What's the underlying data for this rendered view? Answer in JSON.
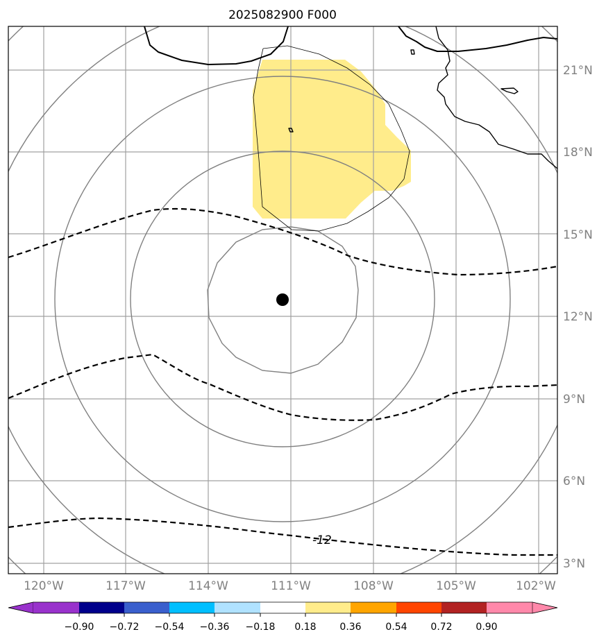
{
  "title": "2025082900 F000",
  "lat_labels": [
    "21°N",
    "18°N",
    "15°N",
    "12°N",
    "9°N",
    "6°N",
    "3°N"
  ],
  "lon_labels": [
    "120°W",
    "117°W",
    "114°W",
    "111°W",
    "108°W",
    "105°W",
    "102°W"
  ],
  "contour_label": "-12",
  "colorbar": {
    "tick_labels": [
      "−0.90",
      "−0.72",
      "−0.54",
      "−0.36",
      "−0.18",
      "0.18",
      "0.36",
      "0.54",
      "0.72",
      "0.90"
    ],
    "colors": [
      "#9932cc",
      "#00008b",
      "#3a5fcd",
      "#00bfff",
      "#b0e2ff",
      "#ffffff",
      "#ffec8b",
      "#ffa500",
      "#ff4500",
      "#b22222",
      "#ff88aa"
    ]
  },
  "colors": {
    "positive_region": "#ffec8b",
    "gridline": "#a0a0a0",
    "range_ring": "#808080",
    "contour": "#000000"
  }
}
